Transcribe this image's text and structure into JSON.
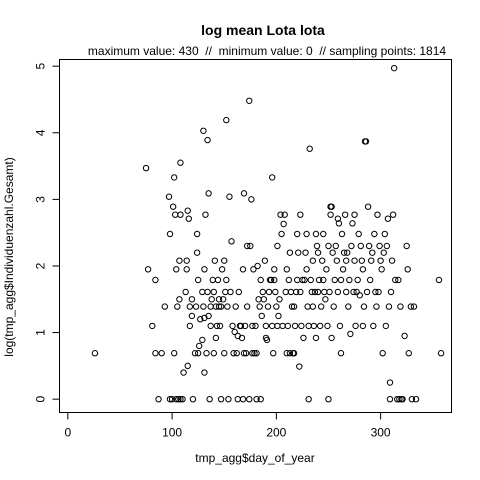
{
  "chart_data": {
    "type": "scatter",
    "title": "log mean Lota lota",
    "subtitle": "maximum value: 430  //  minimum value: 0  // sampling points: 1814",
    "xlabel": "tmp_agg$day_of_year",
    "ylabel": "log(tmp_agg$Individuenzahl.Gesamt)",
    "xlim": [
      -8,
      368
    ],
    "ylim": [
      -0.2,
      5.1
    ],
    "xticks": [
      0,
      100,
      200,
      300
    ],
    "yticks": [
      0,
      1,
      2,
      3,
      4,
      5
    ],
    "grid": false,
    "points": [
      [
        26,
        0.69
      ],
      [
        75,
        3.47
      ],
      [
        77,
        1.95
      ],
      [
        81,
        1.1
      ],
      [
        84,
        1.79
      ],
      [
        84,
        0.69
      ],
      [
        87,
        0
      ],
      [
        90,
        0.69
      ],
      [
        93,
        1.39
      ],
      [
        97,
        3.04
      ],
      [
        98,
        0
      ],
      [
        98,
        2.48
      ],
      [
        100,
        0
      ],
      [
        101,
        2.89
      ],
      [
        102,
        0.69
      ],
      [
        102,
        3.33
      ],
      [
        103,
        2.77
      ],
      [
        104,
        0
      ],
      [
        104,
        1.95
      ],
      [
        105,
        1.39
      ],
      [
        106,
        0
      ],
      [
        107,
        1.5
      ],
      [
        107,
        2.08
      ],
      [
        108,
        0
      ],
      [
        108,
        3.55
      ],
      [
        108,
        2.77
      ],
      [
        110,
        0
      ],
      [
        111,
        0.4
      ],
      [
        113,
        1.61
      ],
      [
        114,
        1.95
      ],
      [
        114,
        2.08
      ],
      [
        115,
        2.83
      ],
      [
        115,
        0.5
      ],
      [
        116,
        2.71
      ],
      [
        117,
        1.39
      ],
      [
        117,
        1.1
      ],
      [
        119,
        1.25
      ],
      [
        119,
        1.5
      ],
      [
        120,
        0
      ],
      [
        122,
        0.69
      ],
      [
        123,
        1.39
      ],
      [
        124,
        2.2
      ],
      [
        124,
        2.48
      ],
      [
        125,
        0.69
      ],
      [
        125,
        1.79
      ],
      [
        126,
        0.8
      ],
      [
        127,
        1.2
      ],
      [
        129,
        1.61
      ],
      [
        129,
        0.89
      ],
      [
        130,
        4.03
      ],
      [
        130,
        1.39
      ],
      [
        131,
        1.95
      ],
      [
        131,
        1.22
      ],
      [
        131,
        0.4
      ],
      [
        132,
        2.77
      ],
      [
        133,
        0.69
      ],
      [
        134,
        1.61
      ],
      [
        134,
        3.89
      ],
      [
        135,
        3.09
      ],
      [
        135,
        1.25
      ],
      [
        136,
        0
      ],
      [
        137,
        1.39
      ],
      [
        137,
        1.1
      ],
      [
        138,
        1.5
      ],
      [
        139,
        1.79
      ],
      [
        140,
        1.61
      ],
      [
        140,
        0.69
      ],
      [
        141,
        2.08
      ],
      [
        142,
        0.92
      ],
      [
        142,
        1.39
      ],
      [
        143,
        1.1
      ],
      [
        144,
        1.79
      ],
      [
        145,
        1.39
      ],
      [
        145,
        1.5
      ],
      [
        146,
        1.1
      ],
      [
        147,
        1.39
      ],
      [
        147,
        0
      ],
      [
        148,
        1.95
      ],
      [
        149,
        1.5
      ],
      [
        150,
        2.08
      ],
      [
        150,
        0.69
      ],
      [
        151,
        1.61
      ],
      [
        152,
        4.19
      ],
      [
        152,
        1.79
      ],
      [
        153,
        1.39
      ],
      [
        154,
        0
      ],
      [
        155,
        3.04
      ],
      [
        156,
        1.61
      ],
      [
        157,
        2.37
      ],
      [
        158,
        1.1
      ],
      [
        159,
        0.69
      ],
      [
        160,
        1.01
      ],
      [
        161,
        1.39
      ],
      [
        162,
        0.69
      ],
      [
        163,
        0.95
      ],
      [
        163,
        0
      ],
      [
        164,
        1.61
      ],
      [
        165,
        1.1
      ],
      [
        166,
        1.1
      ],
      [
        167,
        0.92
      ],
      [
        168,
        0
      ],
      [
        168,
        1.95
      ],
      [
        169,
        3.09
      ],
      [
        169,
        0.69
      ],
      [
        170,
        1.1
      ],
      [
        171,
        0.69
      ],
      [
        172,
        2.3
      ],
      [
        172,
        1.39
      ],
      [
        174,
        0
      ],
      [
        174,
        4.48
      ],
      [
        175,
        2.3
      ],
      [
        176,
        3.0
      ],
      [
        177,
        1.1
      ],
      [
        177,
        0.69
      ],
      [
        178,
        1.95
      ],
      [
        179,
        0.69
      ],
      [
        180,
        1.1
      ],
      [
        181,
        0
      ],
      [
        181,
        0.69
      ],
      [
        182,
        2.0
      ],
      [
        183,
        1.5
      ],
      [
        184,
        1.39
      ],
      [
        185,
        1.79
      ],
      [
        185,
        0
      ],
      [
        186,
        1.25
      ],
      [
        187,
        1.61
      ],
      [
        188,
        1.5
      ],
      [
        189,
        2.08
      ],
      [
        190,
        1.1
      ],
      [
        190,
        0.92
      ],
      [
        191,
        0.89
      ],
      [
        192,
        1.39
      ],
      [
        193,
        1.61
      ],
      [
        194,
        1.79
      ],
      [
        195,
        1.79
      ],
      [
        196,
        3.33
      ],
      [
        196,
        1.1
      ],
      [
        197,
        0.69
      ],
      [
        198,
        1.95
      ],
      [
        198,
        1.79
      ],
      [
        199,
        1.61
      ],
      [
        200,
        1.39
      ],
      [
        201,
        1.1
      ],
      [
        201,
        2.3
      ],
      [
        202,
        1.25
      ],
      [
        203,
        1.5
      ],
      [
        204,
        2.77
      ],
      [
        205,
        2.48
      ],
      [
        206,
        1.1
      ],
      [
        207,
        2.63
      ],
      [
        208,
        2.77
      ],
      [
        209,
        1.61
      ],
      [
        210,
        0.69
      ],
      [
        210,
        1.95
      ],
      [
        211,
        1.1
      ],
      [
        212,
        1.79
      ],
      [
        213,
        0.69
      ],
      [
        213,
        2.2
      ],
      [
        214,
        1.61
      ],
      [
        215,
        1.39
      ],
      [
        216,
        0.69
      ],
      [
        217,
        0.69
      ],
      [
        217,
        1.39
      ],
      [
        218,
        1.1
      ],
      [
        219,
        1.61
      ],
      [
        220,
        1.79
      ],
      [
        220,
        2.48
      ],
      [
        221,
        2.2
      ],
      [
        222,
        0.49
      ],
      [
        223,
        2.77
      ],
      [
        223,
        1.61
      ],
      [
        224,
        1.1
      ],
      [
        225,
        1.79
      ],
      [
        226,
        0.92
      ],
      [
        227,
        1.79
      ],
      [
        228,
        2.2
      ],
      [
        229,
        2.48
      ],
      [
        229,
        1.95
      ],
      [
        230,
        1.39
      ],
      [
        231,
        0
      ],
      [
        231,
        1.1
      ],
      [
        232,
        3.76
      ],
      [
        233,
        1.79
      ],
      [
        234,
        1.61
      ],
      [
        235,
        2.08
      ],
      [
        235,
        1.39
      ],
      [
        236,
        1.1
      ],
      [
        237,
        1.61
      ],
      [
        238,
        2.48
      ],
      [
        238,
        0.92
      ],
      [
        239,
        2.3
      ],
      [
        240,
        1.61
      ],
      [
        240,
        2.2
      ],
      [
        241,
        1.79
      ],
      [
        242,
        1.1
      ],
      [
        243,
        1.39
      ],
      [
        244,
        2.08
      ],
      [
        245,
        2.48
      ],
      [
        245,
        1.79
      ],
      [
        246,
        1.61
      ],
      [
        247,
        1.5
      ],
      [
        248,
        1.95
      ],
      [
        249,
        1.1
      ],
      [
        250,
        2.3
      ],
      [
        250,
        0
      ],
      [
        251,
        1.61
      ],
      [
        252,
        2.89
      ],
      [
        252,
        2.77
      ],
      [
        253,
        2.89
      ],
      [
        253,
        0.92
      ],
      [
        254,
        2.2
      ],
      [
        255,
        1.39
      ],
      [
        256,
        1.79
      ],
      [
        257,
        2.3
      ],
      [
        258,
        2.08
      ],
      [
        259,
        2.71
      ],
      [
        259,
        1.61
      ],
      [
        260,
        2.64
      ],
      [
        261,
        1.1
      ],
      [
        262,
        0.69
      ],
      [
        262,
        1.79
      ],
      [
        263,
        2.48
      ],
      [
        264,
        1.95
      ],
      [
        265,
        2.2
      ],
      [
        266,
        2.77
      ],
      [
        267,
        1.61
      ],
      [
        267,
        2.08
      ],
      [
        268,
        2.2
      ],
      [
        269,
        1.39
      ],
      [
        270,
        1.79
      ],
      [
        271,
        0.98
      ],
      [
        272,
        2.3
      ],
      [
        273,
        2.64
      ],
      [
        274,
        1.61
      ],
      [
        275,
        2.77
      ],
      [
        275,
        2.08
      ],
      [
        276,
        1.1
      ],
      [
        277,
        1.61
      ],
      [
        278,
        1.79
      ],
      [
        279,
        2.48
      ],
      [
        280,
        1.56
      ],
      [
        281,
        2.3
      ],
      [
        282,
        2.08
      ],
      [
        283,
        1.95
      ],
      [
        283,
        1.1
      ],
      [
        284,
        1.39
      ],
      [
        285,
        3.87
      ],
      [
        286,
        3.87
      ],
      [
        287,
        1.61
      ],
      [
        288,
        2.89
      ],
      [
        289,
        2.3
      ],
      [
        290,
        1.79
      ],
      [
        291,
        2.08
      ],
      [
        292,
        2.2
      ],
      [
        293,
        1.1
      ],
      [
        294,
        2.48
      ],
      [
        295,
        1.61
      ],
      [
        296,
        1.39
      ],
      [
        297,
        2.77
      ],
      [
        298,
        1.61
      ],
      [
        299,
        2.3
      ],
      [
        300,
        2.08
      ],
      [
        301,
        1.95
      ],
      [
        302,
        0.69
      ],
      [
        303,
        2.2
      ],
      [
        304,
        2.48
      ],
      [
        305,
        1.1
      ],
      [
        306,
        2.3
      ],
      [
        307,
        2.71
      ],
      [
        308,
        1.39
      ],
      [
        309,
        0.25
      ],
      [
        309,
        0
      ],
      [
        310,
        1.61
      ],
      [
        311,
        2.08
      ],
      [
        312,
        2.77
      ],
      [
        313,
        4.97
      ],
      [
        314,
        1.79
      ],
      [
        316,
        0
      ],
      [
        317,
        1.79
      ],
      [
        318,
        0
      ],
      [
        319,
        1.39
      ],
      [
        320,
        0
      ],
      [
        321,
        0
      ],
      [
        323,
        0.95
      ],
      [
        325,
        2.3
      ],
      [
        326,
        1.95
      ],
      [
        327,
        0.69
      ],
      [
        329,
        1.39
      ],
      [
        330,
        0
      ],
      [
        332,
        1.39
      ],
      [
        334,
        0
      ],
      [
        356,
        1.79
      ],
      [
        358,
        0.69
      ]
    ]
  }
}
